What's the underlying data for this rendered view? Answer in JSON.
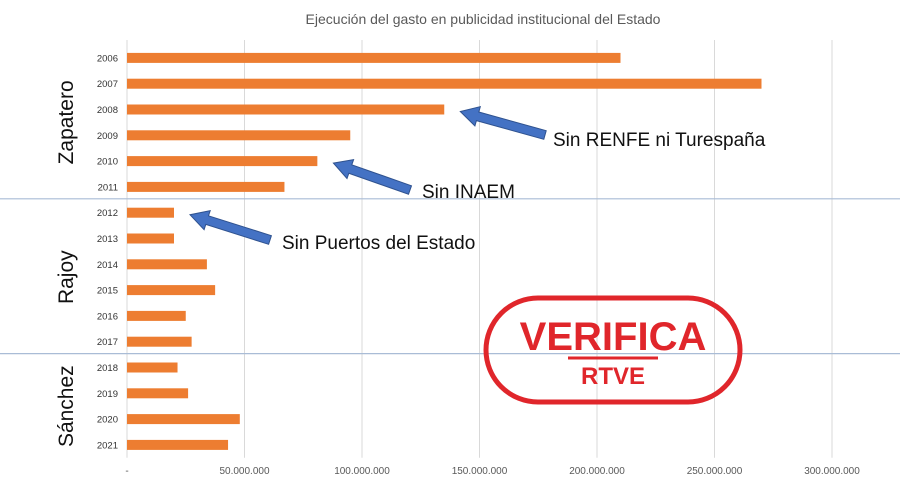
{
  "chart_data": {
    "type": "bar",
    "orientation": "horizontal",
    "title": "Ejecución del gasto en publicidad institucional del Estado",
    "xlabel": "",
    "ylabel": "",
    "categories": [
      "2006",
      "2007",
      "2008",
      "2009",
      "2010",
      "2011",
      "2012",
      "2013",
      "2014",
      "2015",
      "2016",
      "2017",
      "2018",
      "2019",
      "2020",
      "2021"
    ],
    "values": [
      210000000,
      270000000,
      135000000,
      95000000,
      81000000,
      67000000,
      20000000,
      20000000,
      34000000,
      37500000,
      25000000,
      27500000,
      21500000,
      26000000,
      48000000,
      43000000
    ],
    "xlim": [
      0,
      300000000
    ],
    "xticks": [
      "-",
      "50.000.000",
      "100.000.000",
      "150.000.000",
      "200.000.000",
      "250.000.000",
      "300.000.000"
    ],
    "grid": true,
    "bar_color": "#ED7D31",
    "periods": [
      {
        "label": "Zapatero",
        "from": 0,
        "to": 5
      },
      {
        "label": "Rajoy",
        "from": 6,
        "to": 11
      },
      {
        "label": "Sánchez",
        "from": 12,
        "to": 15
      }
    ],
    "annotations": [
      {
        "text": "Sin RENFE ni Turespaña",
        "target_index": 2,
        "target_value": 135000000
      },
      {
        "text": "Sin INAEM",
        "target_index": 4,
        "target_value": 81000000
      },
      {
        "text": "Sin Puertos del Estado",
        "target_index": 6,
        "target_value": 20000000
      }
    ],
    "arrow_color": "#4472C4"
  },
  "stamp": {
    "line1": "VERIFICA",
    "line2": "RTVE",
    "color": "#E0262B"
  }
}
